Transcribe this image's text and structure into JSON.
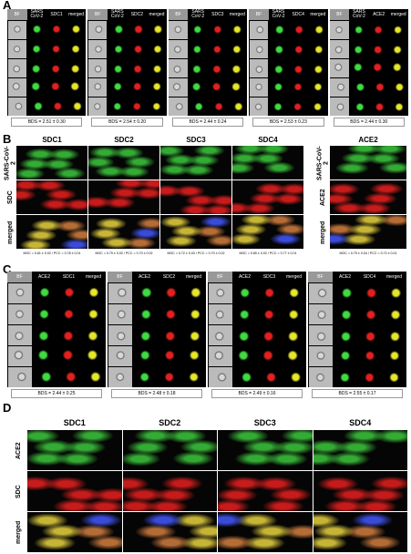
{
  "panels": {
    "a": {
      "label": "A",
      "groups": [
        {
          "columns": [
            "BF",
            "SARS CoV-2",
            "SDC1",
            "merged"
          ],
          "bds": "BDS = 2.51 ± 0.30"
        },
        {
          "columns": [
            "BF",
            "SARS CoV-2",
            "SDC2",
            "merged"
          ],
          "bds": "BDS = 2.54 ± 0.20"
        },
        {
          "columns": [
            "BF",
            "SARS CoV-2",
            "SDC3",
            "merged"
          ],
          "bds": "BDS = 2.44 ± 0.24"
        },
        {
          "columns": [
            "BF",
            "SARS CoV-2",
            "SDC4",
            "merged"
          ],
          "bds": "BDS = 2.53 ± 0.23"
        },
        {
          "columns": [
            "BF",
            "SARS CoV-2",
            "ACE2",
            "merged"
          ],
          "bds": "BDS = 2.44 ± 0.30"
        }
      ]
    },
    "b": {
      "label": "B",
      "columns": [
        "SDC1",
        "SDC2",
        "SDC3",
        "SDC4"
      ],
      "row_labels": [
        "SARS-CoV-2",
        "SDC",
        "merged"
      ],
      "stats": [
        "MOC = 0.81 ± 0.02 / PCC = 0.78 ± 0.01",
        "MOC = 0.79 ± 0.02 / PCC = 0.70 ± 0.02",
        "MOC = 0.72 ± 0.03 / PCC = 0.70 ± 0.02",
        "MOC = 0.80 ± 0.02 / PCC = 0.77 ± 0.01"
      ],
      "ace2": {
        "column": "ACE2",
        "row_labels": [
          "SARS-CoV-2",
          "ACE2",
          "merged"
        ],
        "stats": "MOC = 0.79 ± 0.04 / PCC = 0.72 ± 0.01"
      }
    },
    "c": {
      "label": "C",
      "groups": [
        {
          "columns": [
            "BF",
            "ACE2",
            "SDC1",
            "merged"
          ],
          "bds": "BDS = 2.44 ± 0.25"
        },
        {
          "columns": [
            "BF",
            "ACE2",
            "SDC2",
            "merged"
          ],
          "bds": "BDS = 2.48 ± 0.18"
        },
        {
          "columns": [
            "BF",
            "ACE2",
            "SDC3",
            "merged"
          ],
          "bds": "BDS = 2.49 ± 0.16"
        },
        {
          "columns": [
            "BF",
            "ACE2",
            "SDC4",
            "merged"
          ],
          "bds": "BDS = 2.55 ± 0.17"
        }
      ]
    },
    "d": {
      "label": "D",
      "columns": [
        "SDC1",
        "SDC2",
        "SDC3",
        "SDC4"
      ],
      "row_labels": [
        "ACE2",
        "SDC",
        "merged"
      ]
    }
  }
}
